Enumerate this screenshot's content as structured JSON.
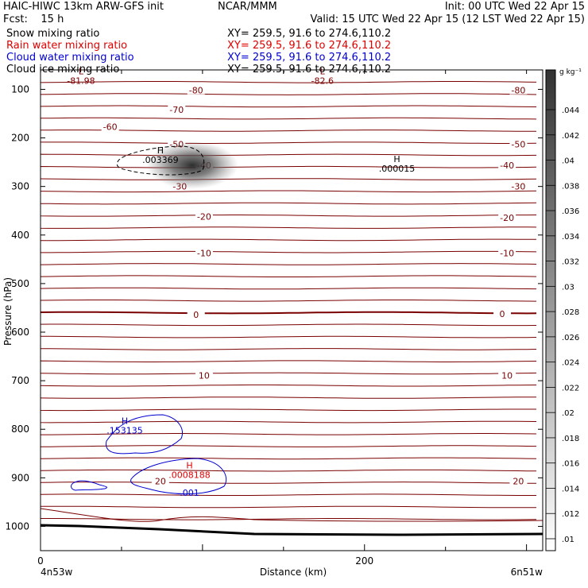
{
  "header": {
    "title_left": "HAIC-HIWC 13km ARW-GFS init",
    "source": "NCAR/MMM",
    "init": "Init: 00 UTC Wed 22 Apr 15",
    "fcst": "Fcst:    15 h",
    "valid": "Valid: 15 UTC Wed 22 Apr 15 (12 LST Wed 22 Apr 15)",
    "fields": [
      {
        "name": "Snow mixing ratio",
        "xy": "XY= 259.5, 91.6 to 274.6,110.2",
        "color": "#000000"
      },
      {
        "name": "Rain water mixing ratio",
        "xy": "XY= 259.5, 91.6 to 274.6,110.2",
        "color": "#e00000"
      },
      {
        "name": "Cloud water mixing ratio",
        "xy": "XY= 259.5, 91.6 to 274.6,110.2",
        "color": "#0000d0"
      },
      {
        "name": "Cloud ice mixing ratio",
        "xy": "XY= 259.5, 91.6 to 274.6,110.2",
        "color": "#000000"
      }
    ]
  },
  "chart_data": {
    "type": "cross-section",
    "ylabel": "Pressure (hPa)",
    "xlabel": "Distance (km)",
    "x_ticks": [
      0,
      200
    ],
    "y_ticks": [
      100,
      200,
      300,
      400,
      500,
      600,
      700,
      800,
      900,
      1000
    ],
    "xlim": [
      0,
      310
    ],
    "ylim_hPa": [
      1050,
      60
    ],
    "left_end_label": "4n53w",
    "right_end_label": "6n51w",
    "colorbar": {
      "unit": "g kg⁻¹",
      "levels": [
        ".01",
        ".012",
        ".014",
        ".016",
        ".018",
        ".02",
        ".022",
        ".024",
        ".026",
        ".028",
        ".03",
        ".032",
        ".034",
        ".036",
        ".038",
        ".04",
        ".042",
        ".044"
      ]
    },
    "temperature_contours": {
      "color": "#7a0000",
      "labels": [
        {
          "value": "-80",
          "x_km": 96,
          "p": 102
        },
        {
          "value": "-80",
          "x_km": 295,
          "p": 102
        },
        {
          "value": "-70",
          "x_km": 84,
          "p": 142
        },
        {
          "value": "-60",
          "x_km": 43,
          "p": 177
        },
        {
          "value": "-50",
          "x_km": 84,
          "p": 213
        },
        {
          "value": "-50",
          "x_km": 295,
          "p": 213
        },
        {
          "value": "-40",
          "x_km": 101,
          "p": 256
        },
        {
          "value": "-40",
          "x_km": 288,
          "p": 256
        },
        {
          "value": "-30",
          "x_km": 86,
          "p": 300
        },
        {
          "value": "-30",
          "x_km": 295,
          "p": 300
        },
        {
          "value": "-20",
          "x_km": 101,
          "p": 362
        },
        {
          "value": "-20",
          "x_km": 288,
          "p": 364
        },
        {
          "value": "-10",
          "x_km": 101,
          "p": 437
        },
        {
          "value": "-10",
          "x_km": 288,
          "p": 437
        },
        {
          "value": "0",
          "x_km": 96,
          "p": 564
        },
        {
          "value": "0",
          "x_km": 285,
          "p": 562
        },
        {
          "value": "10",
          "x_km": 101,
          "p": 689
        },
        {
          "value": "10",
          "x_km": 288,
          "p": 689
        },
        {
          "value": "20",
          "x_km": 74,
          "p": 907
        },
        {
          "value": "20",
          "x_km": 295,
          "p": 907
        }
      ]
    },
    "annotations": [
      {
        "letter": "L",
        "value": "-81.98",
        "color": "#7a0000",
        "x_km": 25,
        "p": 85
      },
      {
        "letter": "L",
        "value": "-82.6",
        "color": "#7a0000",
        "x_km": 174,
        "p": 85
      },
      {
        "letter": "H",
        "value": ".003369",
        "color": "#000000",
        "x_km": 74,
        "p": 248
      },
      {
        "letter": "H",
        "value": ".000015",
        "color": "#000000",
        "x_km": 220,
        "p": 266
      },
      {
        "letter": "H",
        "value": ".153135",
        "color": "#0000d0",
        "x_km": 52,
        "p": 805
      },
      {
        "letter": "H",
        "value": ".0008188",
        "color": "#e00000",
        "x_km": 92,
        "p": 897
      },
      {
        "letter": "",
        "value": ".001",
        "color": "#0000d0",
        "x_km": 92,
        "p": 934
      }
    ]
  }
}
